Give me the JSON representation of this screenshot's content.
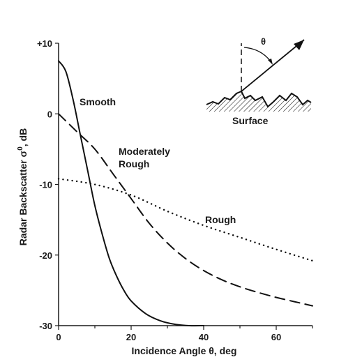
{
  "chart_data": {
    "type": "line",
    "xlabel": "Incidence Angle θ, deg",
    "ylabel_main": "Radar Backscatter σ",
    "ylabel_sup": "0",
    "ylabel_unit": ", dB",
    "xlim": [
      0,
      70
    ],
    "ylim": [
      -30,
      10
    ],
    "xticks": [
      {
        "value": 0,
        "label": "0"
      },
      {
        "value": 20,
        "label": "20"
      },
      {
        "value": 40,
        "label": "40"
      },
      {
        "value": 60,
        "label": "60"
      }
    ],
    "xminor": [
      10,
      30,
      50,
      70
    ],
    "yticks": [
      {
        "value": 10,
        "label": "+10"
      },
      {
        "value": 0,
        "label": "0"
      },
      {
        "value": -10,
        "label": "-10"
      },
      {
        "value": -20,
        "label": "-20"
      },
      {
        "value": -30,
        "label": "-30"
      }
    ],
    "grid": false,
    "series": [
      {
        "name": "Smooth",
        "label_lines": [
          "Smooth"
        ],
        "style": "solid",
        "x": [
          0,
          2,
          4,
          6,
          8,
          10,
          12,
          14,
          16,
          18,
          20,
          24,
          28,
          32,
          36,
          40
        ],
        "values": [
          7.5,
          6,
          2,
          -3,
          -8,
          -13,
          -17,
          -20.5,
          -23,
          -25,
          -26.5,
          -28.3,
          -29.3,
          -29.8,
          -30,
          -30
        ]
      },
      {
        "name": "Moderately Rough",
        "label_lines": [
          "Moderately",
          "Rough"
        ],
        "style": "dashed",
        "x": [
          0,
          5,
          10,
          15,
          20,
          25,
          30,
          35,
          40,
          45,
          50,
          55,
          60,
          65,
          70
        ],
        "values": [
          0,
          -2.5,
          -5,
          -8.5,
          -12,
          -15.5,
          -18.3,
          -20.5,
          -22.2,
          -23.5,
          -24.5,
          -25.3,
          -26,
          -26.6,
          -27.2
        ]
      },
      {
        "name": "Rough",
        "label_lines": [
          "Rough"
        ],
        "style": "dotted",
        "x": [
          0,
          10,
          20,
          30,
          40,
          50,
          60,
          70
        ],
        "values": [
          -9.2,
          -10,
          -11.5,
          -13.8,
          -15.8,
          -17.5,
          -19.2,
          -20.8
        ]
      }
    ],
    "inset": {
      "angle_symbol": "θ",
      "caption": "Surface"
    }
  }
}
